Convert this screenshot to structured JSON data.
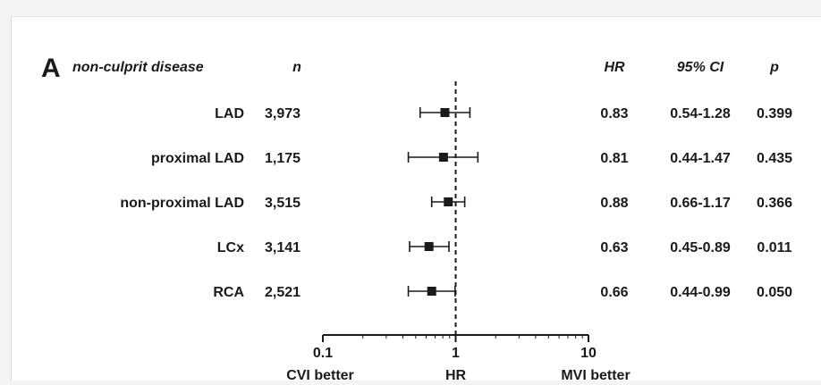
{
  "chart_data": {
    "type": "forest",
    "panel_letter": "A",
    "title": "non-culprit disease",
    "columns": {
      "n": "n",
      "hr": "HR",
      "ci": "95% CI",
      "p": "p"
    },
    "rows": [
      {
        "label": "LAD",
        "n": "3,973",
        "hr": 0.83,
        "ci_low": 0.54,
        "ci_high": 1.28,
        "hr_text": "0.83",
        "ci_text": "0.54-1.28",
        "p_text": "0.399"
      },
      {
        "label": "proximal LAD",
        "n": "1,175",
        "hr": 0.81,
        "ci_low": 0.44,
        "ci_high": 1.47,
        "hr_text": "0.81",
        "ci_text": "0.44-1.47",
        "p_text": "0.435"
      },
      {
        "label": "non-proximal LAD",
        "n": "3,515",
        "hr": 0.88,
        "ci_low": 0.66,
        "ci_high": 1.17,
        "hr_text": "0.88",
        "ci_text": "0.66-1.17",
        "p_text": "0.366"
      },
      {
        "label": "LCx",
        "n": "3,141",
        "hr": 0.63,
        "ci_low": 0.45,
        "ci_high": 0.89,
        "hr_text": "0.63",
        "ci_text": "0.45-0.89",
        "p_text": "0.011"
      },
      {
        "label": "RCA",
        "n": "2,521",
        "hr": 0.66,
        "ci_low": 0.44,
        "ci_high": 0.99,
        "hr_text": "0.66",
        "ci_text": "0.44-0.99",
        "p_text": "0.050"
      }
    ],
    "x_axis": {
      "scale": "log",
      "xlim": [
        0.1,
        10
      ],
      "ticks": [
        0.1,
        1,
        10
      ],
      "tick_labels": [
        "0.1",
        "1",
        "10"
      ],
      "reference_line": 1,
      "xlabel": "HR",
      "left_label": "CVI better",
      "right_label": "MVI better"
    }
  }
}
